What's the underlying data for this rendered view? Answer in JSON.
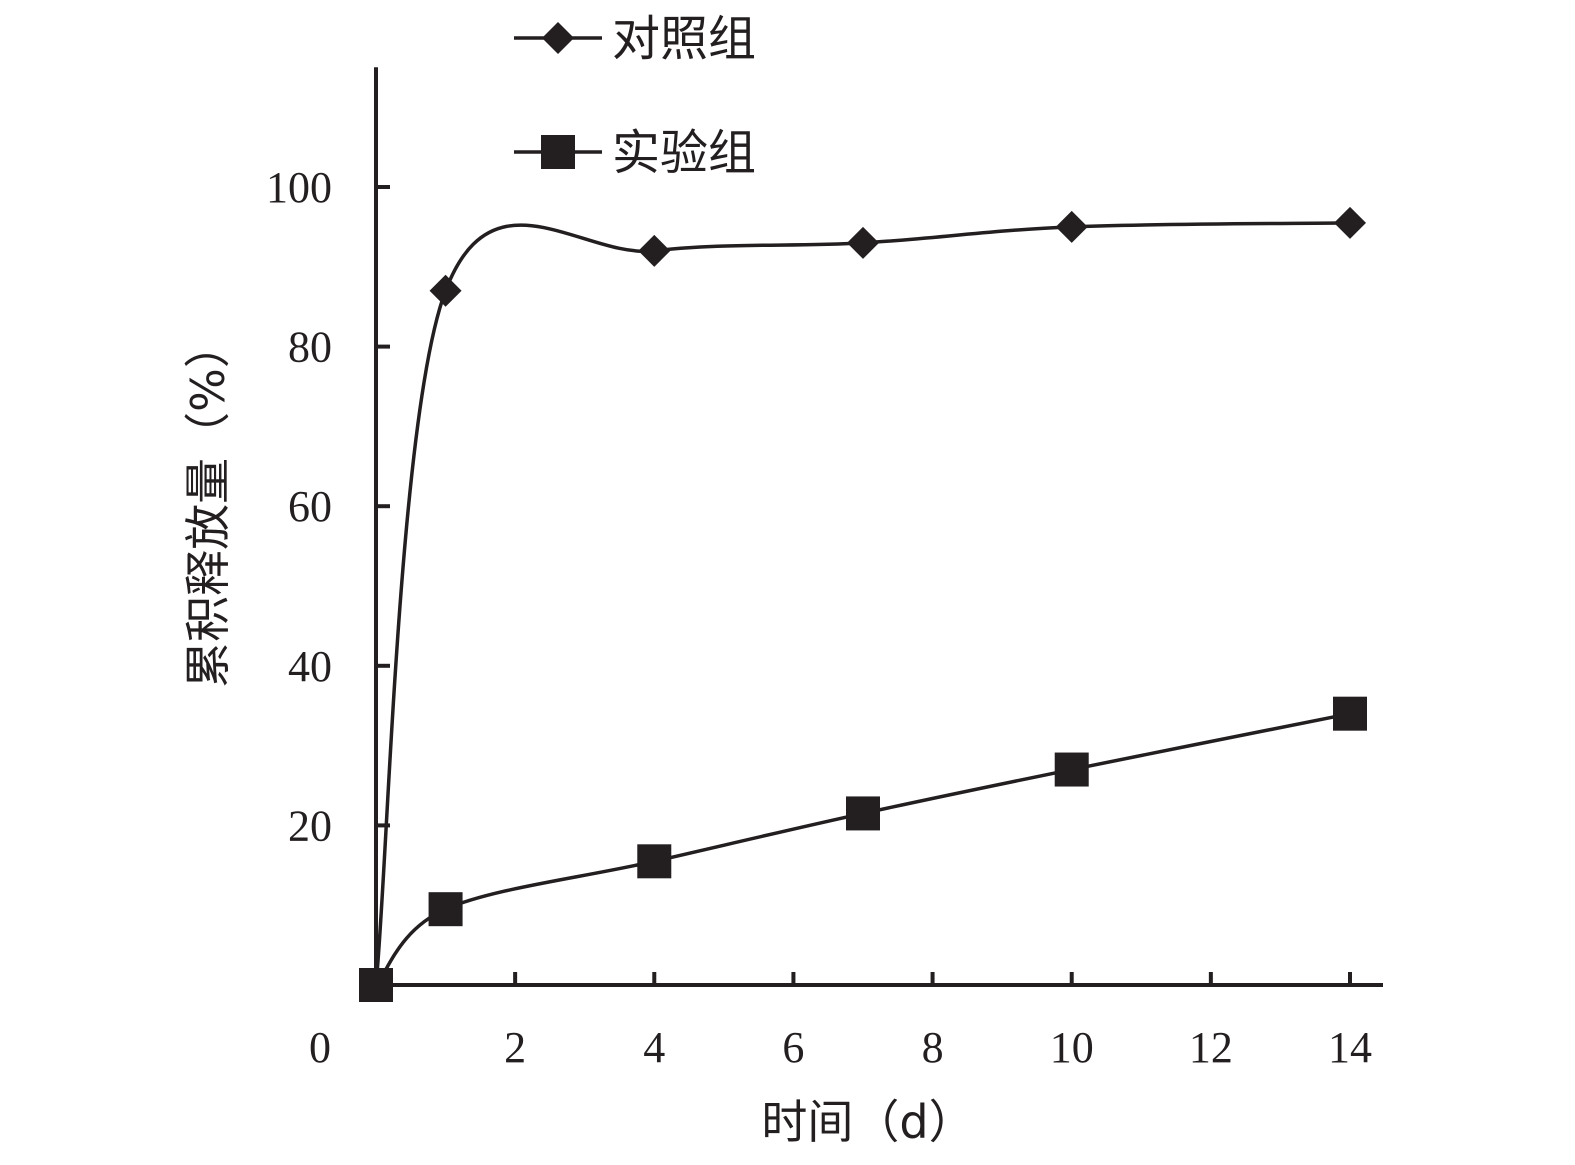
{
  "chart_data": {
    "type": "line",
    "xlabel": "时间（d）",
    "ylabel": "累积释放量（%）",
    "xlim": [
      0,
      14
    ],
    "ylim": [
      0,
      115
    ],
    "x_ticks": [
      0,
      2,
      4,
      6,
      8,
      10,
      12,
      14
    ],
    "x_tick_labels": [
      "0",
      "2",
      "4",
      "6",
      "8",
      "10",
      "12",
      "14"
    ],
    "y_ticks": [
      20,
      40,
      60,
      80,
      100
    ],
    "y_tick_labels": [
      "20",
      "40",
      "60",
      "80",
      "100"
    ],
    "grid": false,
    "legend_position": "top",
    "series": [
      {
        "name": "对照组",
        "marker": "diamond",
        "color": "#231f20",
        "x": [
          0,
          1,
          4,
          7,
          10,
          14
        ],
        "y": [
          0,
          87,
          92,
          93,
          95,
          95.5
        ]
      },
      {
        "name": "实验组",
        "marker": "square",
        "color": "#231f20",
        "x": [
          0,
          1,
          4,
          7,
          10,
          14
        ],
        "y": [
          0,
          9.5,
          15.5,
          21.5,
          27,
          34
        ]
      }
    ]
  }
}
